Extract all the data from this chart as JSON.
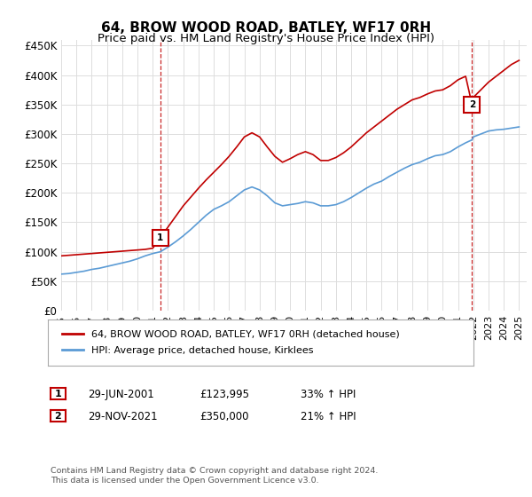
{
  "title": "64, BROW WOOD ROAD, BATLEY, WF17 0RH",
  "subtitle": "Price paid vs. HM Land Registry's House Price Index (HPI)",
  "ylabel_ticks": [
    "£0",
    "£50K",
    "£100K",
    "£150K",
    "£200K",
    "£250K",
    "£300K",
    "£350K",
    "£400K",
    "£450K"
  ],
  "ytick_values": [
    0,
    50000,
    100000,
    150000,
    200000,
    250000,
    300000,
    350000,
    400000,
    450000
  ],
  "ylim": [
    0,
    460000
  ],
  "xlim_start": 1995.0,
  "xlim_end": 2025.5,
  "sale1": {
    "year": 2001.5,
    "price": 123995,
    "label": "1"
  },
  "sale2": {
    "year": 2021.92,
    "price": 350000,
    "label": "2"
  },
  "legend_line1": "64, BROW WOOD ROAD, BATLEY, WF17 0RH (detached house)",
  "legend_line2": "HPI: Average price, detached house, Kirklees",
  "table_rows": [
    [
      "1",
      "29-JUN-2001",
      "£123,995",
      "33% ↑ HPI"
    ],
    [
      "2",
      "29-NOV-2021",
      "£350,000",
      "21% ↑ HPI"
    ]
  ],
  "footer": "Contains HM Land Registry data © Crown copyright and database right 2024.\nThis data is licensed under the Open Government Licence v3.0.",
  "line_color_property": "#c00000",
  "line_color_hpi": "#5b9bd5",
  "background_color": "#ffffff",
  "grid_color": "#dddddd",
  "title_fontsize": 11,
  "subtitle_fontsize": 9.5,
  "axis_fontsize": 8.5,
  "hpi_data_years": [
    1995.0,
    1995.5,
    1996.0,
    1996.5,
    1997.0,
    1997.5,
    1998.0,
    1998.5,
    1999.0,
    1999.5,
    2000.0,
    2000.5,
    2001.0,
    2001.5,
    2002.0,
    2002.5,
    2003.0,
    2003.5,
    2004.0,
    2004.5,
    2005.0,
    2005.5,
    2006.0,
    2006.5,
    2007.0,
    2007.5,
    2008.0,
    2008.5,
    2009.0,
    2009.5,
    2010.0,
    2010.5,
    2011.0,
    2011.5,
    2012.0,
    2012.5,
    2013.0,
    2013.5,
    2014.0,
    2014.5,
    2015.0,
    2015.5,
    2016.0,
    2016.5,
    2017.0,
    2017.5,
    2018.0,
    2018.5,
    2019.0,
    2019.5,
    2020.0,
    2020.5,
    2021.0,
    2021.5,
    2021.92,
    2022.0,
    2022.5,
    2023.0,
    2023.5,
    2024.0,
    2024.5,
    2025.0
  ],
  "hpi_data_values": [
    62000,
    63000,
    65000,
    67000,
    70000,
    72000,
    75000,
    78000,
    81000,
    84000,
    88000,
    93000,
    97000,
    100000,
    108000,
    117000,
    127000,
    138000,
    150000,
    162000,
    172000,
    178000,
    185000,
    195000,
    205000,
    210000,
    205000,
    195000,
    183000,
    178000,
    180000,
    182000,
    185000,
    183000,
    178000,
    178000,
    180000,
    185000,
    192000,
    200000,
    208000,
    215000,
    220000,
    228000,
    235000,
    242000,
    248000,
    252000,
    258000,
    263000,
    265000,
    270000,
    278000,
    285000,
    290000,
    295000,
    300000,
    305000,
    307000,
    308000,
    310000,
    312000
  ],
  "prop_data_years": [
    1995.0,
    1995.5,
    1996.0,
    1996.5,
    1997.0,
    1997.5,
    1998.0,
    1998.5,
    1999.0,
    1999.5,
    2000.0,
    2000.5,
    2001.0,
    2001.5,
    2002.0,
    2002.5,
    2003.0,
    2003.5,
    2004.0,
    2004.5,
    2005.0,
    2005.5,
    2006.0,
    2006.5,
    2007.0,
    2007.5,
    2008.0,
    2008.5,
    2009.0,
    2009.5,
    2010.0,
    2010.5,
    2011.0,
    2011.5,
    2012.0,
    2012.5,
    2013.0,
    2013.5,
    2014.0,
    2014.5,
    2015.0,
    2015.5,
    2016.0,
    2016.5,
    2017.0,
    2017.5,
    2018.0,
    2018.5,
    2019.0,
    2019.5,
    2020.0,
    2020.5,
    2021.0,
    2021.5,
    2021.92,
    2022.0,
    2022.5,
    2023.0,
    2023.5,
    2024.0,
    2024.5,
    2025.0
  ],
  "prop_data_values": [
    93000,
    94000,
    95000,
    96000,
    97000,
    98000,
    99000,
    100000,
    101000,
    102000,
    103000,
    104000,
    106000,
    123995,
    142000,
    160000,
    178000,
    193000,
    208000,
    222000,
    235000,
    248000,
    262000,
    278000,
    295000,
    302000,
    295000,
    278000,
    262000,
    252000,
    258000,
    265000,
    270000,
    265000,
    255000,
    255000,
    260000,
    268000,
    278000,
    290000,
    302000,
    312000,
    322000,
    332000,
    342000,
    350000,
    358000,
    362000,
    368000,
    373000,
    375000,
    382000,
    392000,
    398000,
    350000,
    362000,
    375000,
    388000,
    398000,
    408000,
    418000,
    425000
  ]
}
